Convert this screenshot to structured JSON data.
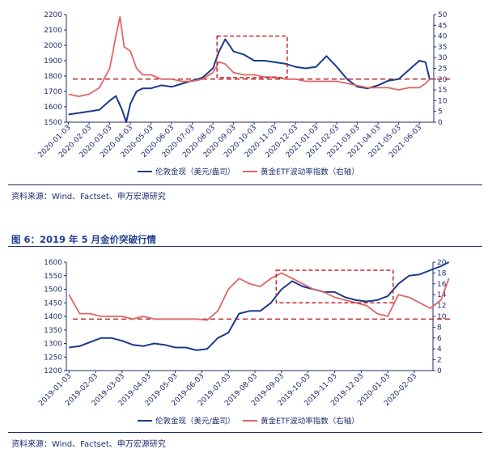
{
  "top": {
    "source": "资料来源：Wind、Factset、申万宏源研究",
    "chart_data": {
      "type": "line",
      "title": "",
      "y_left_ticks": [
        1500,
        1600,
        1700,
        1800,
        1900,
        2000,
        2100,
        2200
      ],
      "y_right_ticks": [
        0,
        5,
        10,
        15,
        20,
        25,
        30,
        35,
        40,
        45,
        50
      ],
      "ylim_left": [
        1500,
        2200
      ],
      "ylim_right": [
        0,
        50
      ],
      "x_ticks": [
        "2020-01-03",
        "2020-02-03",
        "2020-03-03",
        "2020-04-03",
        "2020-05-03",
        "2020-06-03",
        "2020-07-03",
        "2020-08-03",
        "2020-09-03",
        "2020-10-03",
        "2020-11-03",
        "2020-12-03",
        "2021-01-03",
        "2021-02-03",
        "2021-03-03",
        "2021-04-03",
        "2021-05-03",
        "2021-06-03"
      ],
      "reference_line": {
        "axis": "right",
        "value": 20,
        "style": "dashed",
        "color": "#c0282b"
      },
      "highlight_box": {
        "x_from": 7.2,
        "x_to": 10.6,
        "y_left_from": 1790,
        "y_left_to": 2060,
        "style": "dashed",
        "color": "#c0282b"
      },
      "series": [
        {
          "name": "伦敦金现（美元/盎司）",
          "axis": "left",
          "color": "#1a3a8c",
          "x": [
            0,
            0.5,
            1,
            1.5,
            2,
            2.3,
            2.6,
            2.8,
            3,
            3.3,
            3.6,
            4,
            4.5,
            5,
            5.5,
            6,
            6.5,
            7,
            7.3,
            7.6,
            8,
            8.5,
            9,
            9.5,
            10,
            10.5,
            11,
            11.5,
            12,
            12.5,
            13,
            13.5,
            14,
            14.5,
            15,
            15.5,
            16,
            16.5,
            17,
            17.3,
            17.5
          ],
          "y": [
            1550,
            1560,
            1570,
            1580,
            1640,
            1670,
            1580,
            1500,
            1620,
            1700,
            1720,
            1720,
            1740,
            1730,
            1750,
            1770,
            1790,
            1850,
            1960,
            2040,
            1960,
            1940,
            1900,
            1900,
            1890,
            1880,
            1860,
            1850,
            1860,
            1930,
            1860,
            1780,
            1730,
            1720,
            1740,
            1770,
            1780,
            1840,
            1900,
            1890,
            1780
          ]
        },
        {
          "name": "黄金ETF波动率指数（右轴）",
          "axis": "right",
          "color": "#e06666",
          "x": [
            0,
            0.5,
            1,
            1.5,
            2,
            2.3,
            2.5,
            2.7,
            3,
            3.3,
            3.6,
            4,
            4.5,
            5,
            5.5,
            6,
            6.5,
            7,
            7.3,
            7.6,
            8,
            8.5,
            9,
            9.5,
            10,
            10.5,
            11,
            11.5,
            12,
            12.5,
            13,
            13.5,
            14,
            14.5,
            15,
            15.5,
            16,
            16.5,
            17,
            17.3,
            17.5
          ],
          "y": [
            13,
            12,
            13,
            16,
            25,
            40,
            49,
            35,
            33,
            25,
            22,
            22,
            20,
            20,
            19,
            19,
            20,
            23,
            28,
            27,
            23,
            22,
            22,
            21,
            21,
            20,
            20,
            19,
            19,
            19,
            19,
            18,
            17,
            16,
            16,
            16,
            15,
            16,
            16,
            18,
            20
          ]
        }
      ]
    }
  },
  "bottom": {
    "title": "图 6：2019 年 5 月金价突破行情",
    "source": "资料来源：Wind、Factset、申万宏源研究",
    "chart_data": {
      "type": "line",
      "title": "",
      "y_left_ticks": [
        1200,
        1250,
        1300,
        1350,
        1400,
        1450,
        1500,
        1550,
        1600
      ],
      "y_right_ticks": [
        0,
        2,
        4,
        6,
        8,
        10,
        12,
        14,
        16,
        18,
        20
      ],
      "ylim_left": [
        1200,
        1600
      ],
      "ylim_right": [
        0,
        20
      ],
      "x_ticks": [
        "2019-01-03",
        "2019-02-03",
        "2019-03-03",
        "2019-04-03",
        "2019-05-03",
        "2019-06-03",
        "2019-07-03",
        "2019-08-03",
        "2019-09-03",
        "2019-10-03",
        "2019-11-03",
        "2019-12-03",
        "2020-01-03",
        "2020-02-03"
      ],
      "reference_line": {
        "axis": "right",
        "value": 9.5,
        "style": "dashed",
        "color": "#c0282b"
      },
      "highlight_box": {
        "x_from": 7.8,
        "x_to": 12.2,
        "y_left_from": 1450,
        "y_left_to": 1570,
        "style": "dashed",
        "color": "#c0282b"
      },
      "series": [
        {
          "name": "伦敦金现（美元/盎司）",
          "axis": "left",
          "color": "#1a3a8c",
          "x": [
            0,
            0.4,
            0.8,
            1.2,
            1.6,
            2,
            2.4,
            2.8,
            3.2,
            3.6,
            4,
            4.4,
            4.8,
            5.2,
            5.6,
            6,
            6.4,
            6.8,
            7.2,
            7.6,
            8,
            8.4,
            8.8,
            9.2,
            9.6,
            10,
            10.4,
            10.8,
            11.2,
            11.6,
            12,
            12.4,
            12.8,
            13.2,
            13.6,
            14,
            14.3
          ],
          "y": [
            1285,
            1290,
            1305,
            1320,
            1320,
            1310,
            1295,
            1290,
            1300,
            1295,
            1285,
            1285,
            1275,
            1280,
            1320,
            1340,
            1410,
            1420,
            1420,
            1450,
            1500,
            1530,
            1510,
            1500,
            1490,
            1490,
            1470,
            1460,
            1455,
            1460,
            1475,
            1520,
            1550,
            1555,
            1570,
            1585,
            1600
          ]
        },
        {
          "name": "黄金ETF波动率指数（右轴）",
          "axis": "right",
          "color": "#e06666",
          "x": [
            0,
            0.4,
            0.8,
            1.2,
            1.6,
            2,
            2.4,
            2.8,
            3.2,
            3.6,
            4,
            4.4,
            4.8,
            5.2,
            5.6,
            6,
            6.4,
            6.8,
            7.2,
            7.6,
            8,
            8.4,
            8.8,
            9.2,
            9.6,
            10,
            10.4,
            10.8,
            11.2,
            11.6,
            12,
            12.4,
            12.8,
            13.2,
            13.6,
            14,
            14.3
          ],
          "y": [
            14,
            10.5,
            10.5,
            10,
            10,
            10,
            9.5,
            10,
            9.5,
            9.5,
            9.5,
            9.5,
            9.5,
            9.3,
            11,
            15,
            17,
            16,
            15.5,
            17,
            18,
            17,
            16,
            15,
            14.5,
            13.5,
            13,
            12.5,
            12,
            10.5,
            10,
            14,
            13.5,
            12.5,
            11.5,
            13,
            17
          ]
        }
      ]
    }
  }
}
